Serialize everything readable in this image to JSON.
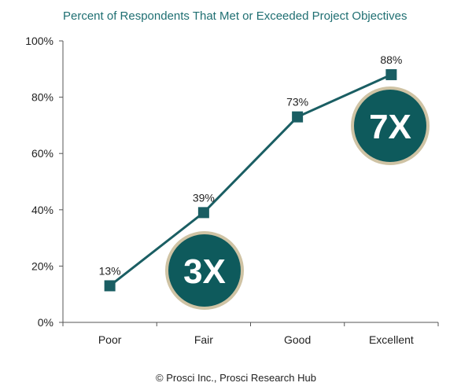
{
  "title": "Percent of Respondents That Met or Exceeded Project Objectives",
  "footer": "© Prosci Inc., Prosci Research Hub",
  "colors": {
    "title": "#1f6f72",
    "line": "#1a5e63",
    "badge_fill": "#0e5a5c",
    "badge_ring": "#cfc3a4",
    "axis": "#555555"
  },
  "badges": [
    {
      "label": "3X",
      "category": "Fair"
    },
    {
      "label": "7X",
      "category": "Excellent"
    }
  ],
  "chart_data": {
    "type": "line",
    "title": "Percent of Respondents That Met or Exceeded Project Objectives",
    "xlabel": "",
    "ylabel": "",
    "categories": [
      "Poor",
      "Fair",
      "Good",
      "Excellent"
    ],
    "series": [
      {
        "values": [
          13,
          39,
          73,
          88
        ]
      }
    ],
    "data_labels": [
      "13%",
      "39%",
      "73%",
      "88%"
    ],
    "ylim": [
      0,
      100
    ],
    "yticks": [
      0,
      20,
      40,
      60,
      80,
      100
    ],
    "ytick_labels": [
      "0%",
      "20%",
      "40%",
      "60%",
      "80%",
      "100%"
    ],
    "grid": false,
    "legend": "none"
  }
}
